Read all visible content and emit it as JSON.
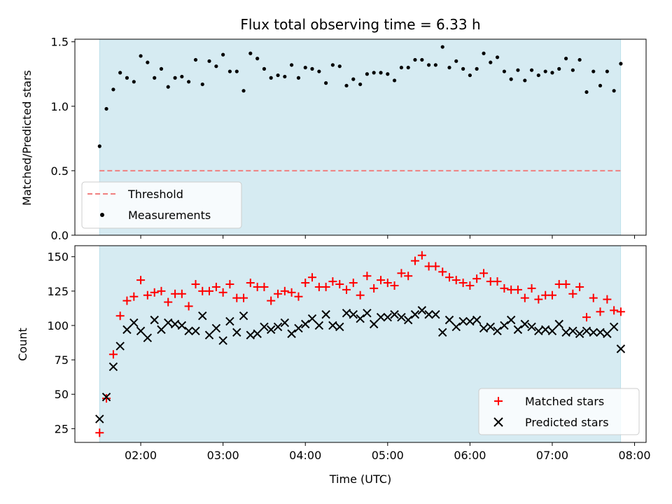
{
  "chart_data": [
    {
      "type": "scatter",
      "title": "Flux total observing time = 6.33 h",
      "xlabel": "",
      "ylabel": "Matched/Predicted stars",
      "xlim": [
        1.2,
        8.14
      ],
      "ylim": [
        0.0,
        1.52
      ],
      "yticks": [
        {
          "v": 0.0,
          "label": "0.0"
        },
        {
          "v": 0.5,
          "label": "0.5"
        },
        {
          "v": 1.0,
          "label": "1.0"
        },
        {
          "v": 1.5,
          "label": "1.5"
        }
      ],
      "observing_window": [
        1.5,
        7.83
      ],
      "threshold": {
        "name": "Threshold",
        "value": 0.5,
        "color": "#f08080"
      },
      "series": [
        {
          "name": "Measurements",
          "color": "#000000",
          "x": [
            1.5,
            1.583,
            1.667,
            1.75,
            1.833,
            1.917,
            2.0,
            2.083,
            2.167,
            2.25,
            2.333,
            2.417,
            2.5,
            2.583,
            2.667,
            2.75,
            2.833,
            2.917,
            3.0,
            3.083,
            3.167,
            3.25,
            3.333,
            3.417,
            3.5,
            3.583,
            3.667,
            3.75,
            3.833,
            3.917,
            4.0,
            4.083,
            4.167,
            4.25,
            4.333,
            4.417,
            4.5,
            4.583,
            4.667,
            4.75,
            4.833,
            4.917,
            5.0,
            5.083,
            5.167,
            5.25,
            5.333,
            5.417,
            5.5,
            5.583,
            5.667,
            5.75,
            5.833,
            5.917,
            6.0,
            6.083,
            6.167,
            6.25,
            6.333,
            6.417,
            6.5,
            6.583,
            6.667,
            6.75,
            6.833,
            6.917,
            7.0,
            7.083,
            7.167,
            7.25,
            7.333,
            7.417,
            7.5,
            7.583,
            7.667,
            7.75,
            7.833
          ],
          "y": [
            0.69,
            0.98,
            1.13,
            1.26,
            1.22,
            1.19,
            1.39,
            1.34,
            1.22,
            1.29,
            1.15,
            1.22,
            1.23,
            1.19,
            1.36,
            1.17,
            1.35,
            1.31,
            1.4,
            1.27,
            1.27,
            1.12,
            1.41,
            1.37,
            1.29,
            1.22,
            1.24,
            1.23,
            1.32,
            1.22,
            1.3,
            1.29,
            1.27,
            1.18,
            1.32,
            1.31,
            1.16,
            1.21,
            1.17,
            1.25,
            1.26,
            1.26,
            1.25,
            1.2,
            1.3,
            1.3,
            1.36,
            1.36,
            1.32,
            1.32,
            1.46,
            1.3,
            1.35,
            1.29,
            1.24,
            1.29,
            1.41,
            1.34,
            1.38,
            1.27,
            1.21,
            1.28,
            1.2,
            1.28,
            1.24,
            1.27,
            1.26,
            1.29,
            1.37,
            1.28,
            1.36,
            1.11,
            1.27,
            1.16,
            1.27,
            1.12,
            1.33
          ]
        }
      ]
    },
    {
      "type": "scatter",
      "title": "",
      "xlabel": "Time (UTC)",
      "ylabel": "Count",
      "xlim": [
        1.2,
        8.14
      ],
      "ylim": [
        15,
        158
      ],
      "xticks": [
        {
          "v": 2,
          "label": "02:00"
        },
        {
          "v": 3,
          "label": "03:00"
        },
        {
          "v": 4,
          "label": "04:00"
        },
        {
          "v": 5,
          "label": "05:00"
        },
        {
          "v": 6,
          "label": "06:00"
        },
        {
          "v": 7,
          "label": "07:00"
        },
        {
          "v": 8,
          "label": "08:00"
        }
      ],
      "yticks": [
        {
          "v": 25,
          "label": "25"
        },
        {
          "v": 50,
          "label": "50"
        },
        {
          "v": 75,
          "label": "75"
        },
        {
          "v": 100,
          "label": "100"
        },
        {
          "v": 125,
          "label": "125"
        },
        {
          "v": 150,
          "label": "150"
        }
      ],
      "observing_window": [
        1.5,
        7.83
      ],
      "series": [
        {
          "name": "Matched stars",
          "marker": "plus",
          "color": "#ff0000",
          "x": [
            1.5,
            1.583,
            1.667,
            1.75,
            1.833,
            1.917,
            2.0,
            2.083,
            2.167,
            2.25,
            2.333,
            2.417,
            2.5,
            2.583,
            2.667,
            2.75,
            2.833,
            2.917,
            3.0,
            3.083,
            3.167,
            3.25,
            3.333,
            3.417,
            3.5,
            3.583,
            3.667,
            3.75,
            3.833,
            3.917,
            4.0,
            4.083,
            4.167,
            4.25,
            4.333,
            4.417,
            4.5,
            4.583,
            4.667,
            4.75,
            4.833,
            4.917,
            5.0,
            5.083,
            5.167,
            5.25,
            5.333,
            5.417,
            5.5,
            5.583,
            5.667,
            5.75,
            5.833,
            5.917,
            6.0,
            6.083,
            6.167,
            6.25,
            6.333,
            6.417,
            6.5,
            6.583,
            6.667,
            6.75,
            6.833,
            6.917,
            7.0,
            7.083,
            7.167,
            7.25,
            7.333,
            7.417,
            7.5,
            7.583,
            7.667,
            7.75,
            7.833
          ],
          "y": [
            22,
            47,
            79,
            107,
            118,
            121,
            133,
            122,
            124,
            125,
            117,
            123,
            123,
            114,
            130,
            125,
            125,
            128,
            124,
            130,
            120,
            120,
            131,
            128,
            128,
            118,
            123,
            125,
            124,
            121,
            131,
            135,
            128,
            128,
            132,
            130,
            126,
            131,
            122,
            136,
            127,
            133,
            131,
            129,
            138,
            136,
            147,
            151,
            143,
            143,
            139,
            135,
            133,
            131,
            129,
            134,
            138,
            132,
            132,
            127,
            126,
            126,
            120,
            127,
            119,
            122,
            122,
            130,
            130,
            123,
            128,
            106,
            120,
            110,
            119,
            111,
            110
          ]
        },
        {
          "name": "Predicted stars",
          "marker": "x",
          "color": "#000000",
          "x": [
            1.5,
            1.583,
            1.667,
            1.75,
            1.833,
            1.917,
            2.0,
            2.083,
            2.167,
            2.25,
            2.333,
            2.417,
            2.5,
            2.583,
            2.667,
            2.75,
            2.833,
            2.917,
            3.0,
            3.083,
            3.167,
            3.25,
            3.333,
            3.417,
            3.5,
            3.583,
            3.667,
            3.75,
            3.833,
            3.917,
            4.0,
            4.083,
            4.167,
            4.25,
            4.333,
            4.417,
            4.5,
            4.583,
            4.667,
            4.75,
            4.833,
            4.917,
            5.0,
            5.083,
            5.167,
            5.25,
            5.333,
            5.417,
            5.5,
            5.583,
            5.667,
            5.75,
            5.833,
            5.917,
            6.0,
            6.083,
            6.167,
            6.25,
            6.333,
            6.417,
            6.5,
            6.583,
            6.667,
            6.75,
            6.833,
            6.917,
            7.0,
            7.083,
            7.167,
            7.25,
            7.333,
            7.417,
            7.5,
            7.583,
            7.667,
            7.75,
            7.833
          ],
          "y": [
            32,
            48,
            70,
            85,
            97,
            102,
            96,
            91,
            104,
            97,
            102,
            101,
            100,
            96,
            96,
            107,
            93,
            98,
            89,
            103,
            95,
            107,
            93,
            94,
            99,
            97,
            99,
            102,
            94,
            98,
            101,
            105,
            100,
            108,
            100,
            99,
            109,
            108,
            105,
            109,
            101,
            106,
            106,
            108,
            106,
            104,
            108,
            111,
            108,
            108,
            95,
            104,
            99,
            103,
            103,
            104,
            98,
            99,
            96,
            100,
            104,
            97,
            101,
            99,
            96,
            97,
            96,
            101,
            95,
            96,
            94,
            96,
            95,
            95,
            94,
            99,
            83
          ]
        }
      ]
    }
  ]
}
